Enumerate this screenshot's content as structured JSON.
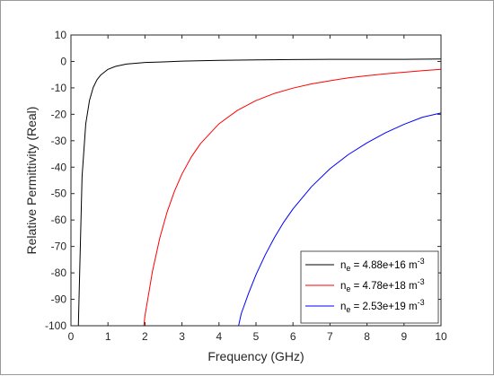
{
  "chart_data": {
    "type": "line",
    "xlabel": "Frequency (GHz)",
    "ylabel": "Relative Permittivity (Real)",
    "xlim": [
      0,
      10
    ],
    "ylim": [
      -100,
      10
    ],
    "x_ticks": [
      "0",
      "1",
      "2",
      "3",
      "4",
      "5",
      "6",
      "7",
      "8",
      "9",
      "10"
    ],
    "y_ticks": [
      "10",
      "0",
      "-10",
      "-20",
      "-30",
      "-40",
      "-50",
      "-60",
      "-70",
      "-80",
      "-90",
      "-100"
    ],
    "grid": false,
    "legend_position": "bottom-right",
    "series": [
      {
        "label_base": "n",
        "label_sub": "e",
        "label_value": " = 4.88e+16 m",
        "label_sup": "-3",
        "color": "#000000",
        "x": [
          0.2,
          0.3,
          0.4,
          0.5,
          0.6,
          0.7,
          0.8,
          1,
          1.2,
          1.5,
          2,
          2.5,
          3,
          4,
          5,
          6,
          7,
          8,
          9,
          10
        ],
        "y": [
          -100,
          -43.6,
          -23.6,
          -14.8,
          -9.9,
          -7.0,
          -5.2,
          -3.0,
          -1.9,
          -1.0,
          -0.4,
          -0.2,
          0.1,
          0.4,
          0.6,
          0.7,
          0.8,
          0.8,
          0.8,
          0.9
        ]
      },
      {
        "label_base": "n",
        "label_sub": "e",
        "label_value": " = 4.78e+18 m",
        "label_sup": "-3",
        "color": "#ff0000",
        "x": [
          1.97,
          2,
          2.2,
          2.4,
          2.6,
          2.8,
          3,
          3.25,
          3.5,
          4,
          4.5,
          5,
          5.5,
          6,
          6.5,
          7,
          7.5,
          8,
          8.5,
          9,
          9.5,
          10
        ],
        "y": [
          -100,
          -96.2,
          -79.6,
          -66.8,
          -56.9,
          -49.0,
          -42.6,
          -36.2,
          -31.1,
          -23.6,
          -18.5,
          -14.8,
          -12.1,
          -10.1,
          -8.5,
          -7.3,
          -6.2,
          -5.4,
          -4.7,
          -4.1,
          -3.5,
          -3.0
        ]
      },
      {
        "label_base": "n",
        "label_sub": "e",
        "label_value": " = 2.53e+19 m",
        "label_sup": "-3",
        "color": "#0000ff",
        "x": [
          4.53,
          4.6,
          4.8,
          5,
          5.25,
          5.5,
          5.75,
          6,
          6.5,
          7,
          7.5,
          8,
          8.5,
          9,
          9.5,
          10
        ],
        "y": [
          -100,
          -95.5,
          -87.7,
          -80.7,
          -73.2,
          -66.6,
          -60.8,
          -55.8,
          -47.4,
          -40.6,
          -35.2,
          -30.8,
          -27.0,
          -23.8,
          -21.1,
          -19.5
        ]
      }
    ]
  }
}
